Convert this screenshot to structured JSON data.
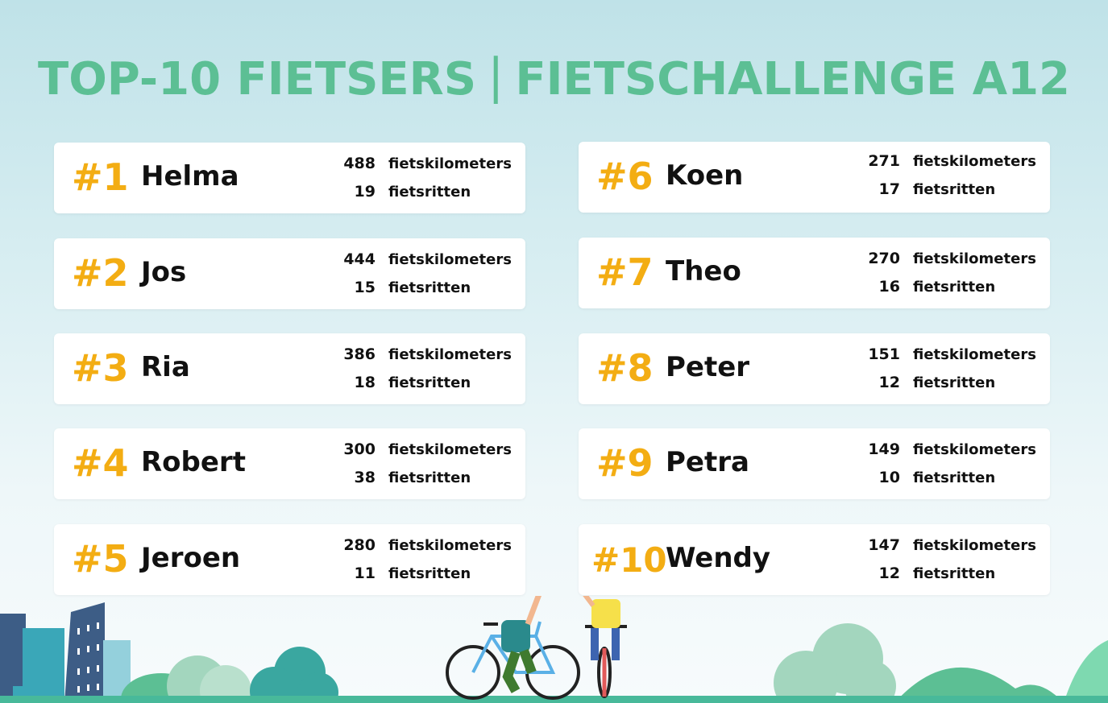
{
  "header": {
    "title_left": "TOP-10 FIETSERS",
    "separator": "|",
    "title_right": "FIETSCHALLENGE A12"
  },
  "leaderboard": [
    {
      "rank": "#1",
      "name": "Helma",
      "km": "488",
      "km_label": "fietskilometers",
      "rides": "19",
      "rides_label": "fietsritten"
    },
    {
      "rank": "#2",
      "name": "Jos",
      "km": "444",
      "km_label": "fietskilometers",
      "rides": "15",
      "rides_label": "fietsritten"
    },
    {
      "rank": "#3",
      "name": "Ria",
      "km": "386",
      "km_label": "fietskilometers",
      "rides": "18",
      "rides_label": "fietsritten"
    },
    {
      "rank": "#4",
      "name": "Robert",
      "km": "300",
      "km_label": "fietskilometers",
      "rides": "38",
      "rides_label": "fietsritten"
    },
    {
      "rank": "#5",
      "name": "Jeroen",
      "km": "280",
      "km_label": "fietskilometers",
      "rides": "11",
      "rides_label": "fietsritten"
    },
    {
      "rank": "#6",
      "name": "Koen",
      "km": "271",
      "km_label": "fietskilometers",
      "rides": "17",
      "rides_label": "fietsritten"
    },
    {
      "rank": "#7",
      "name": "Theo",
      "km": "270",
      "km_label": "fietskilometers",
      "rides": "16",
      "rides_label": "fietsritten"
    },
    {
      "rank": "#8",
      "name": "Peter",
      "km": "151",
      "km_label": "fietskilometers",
      "rides": "12",
      "rides_label": "fietsritten"
    },
    {
      "rank": "#9",
      "name": "Petra",
      "km": "149",
      "km_label": "fietskilometers",
      "rides": "10",
      "rides_label": "fietsritten"
    },
    {
      "rank": "#10",
      "name": "Wendy",
      "km": "147",
      "km_label": "fietskilometers",
      "rides": "12",
      "rides_label": "fietsritten"
    }
  ],
  "colors": {
    "title": "#5cbf94",
    "rank": "#f3ad13",
    "card": "#ffffff",
    "text": "#111111"
  },
  "illustration": {
    "icons": [
      "city-buildings-icon",
      "cyclist-adult-icon",
      "cyclist-child-icon",
      "bush-icon",
      "hill-icon"
    ]
  }
}
